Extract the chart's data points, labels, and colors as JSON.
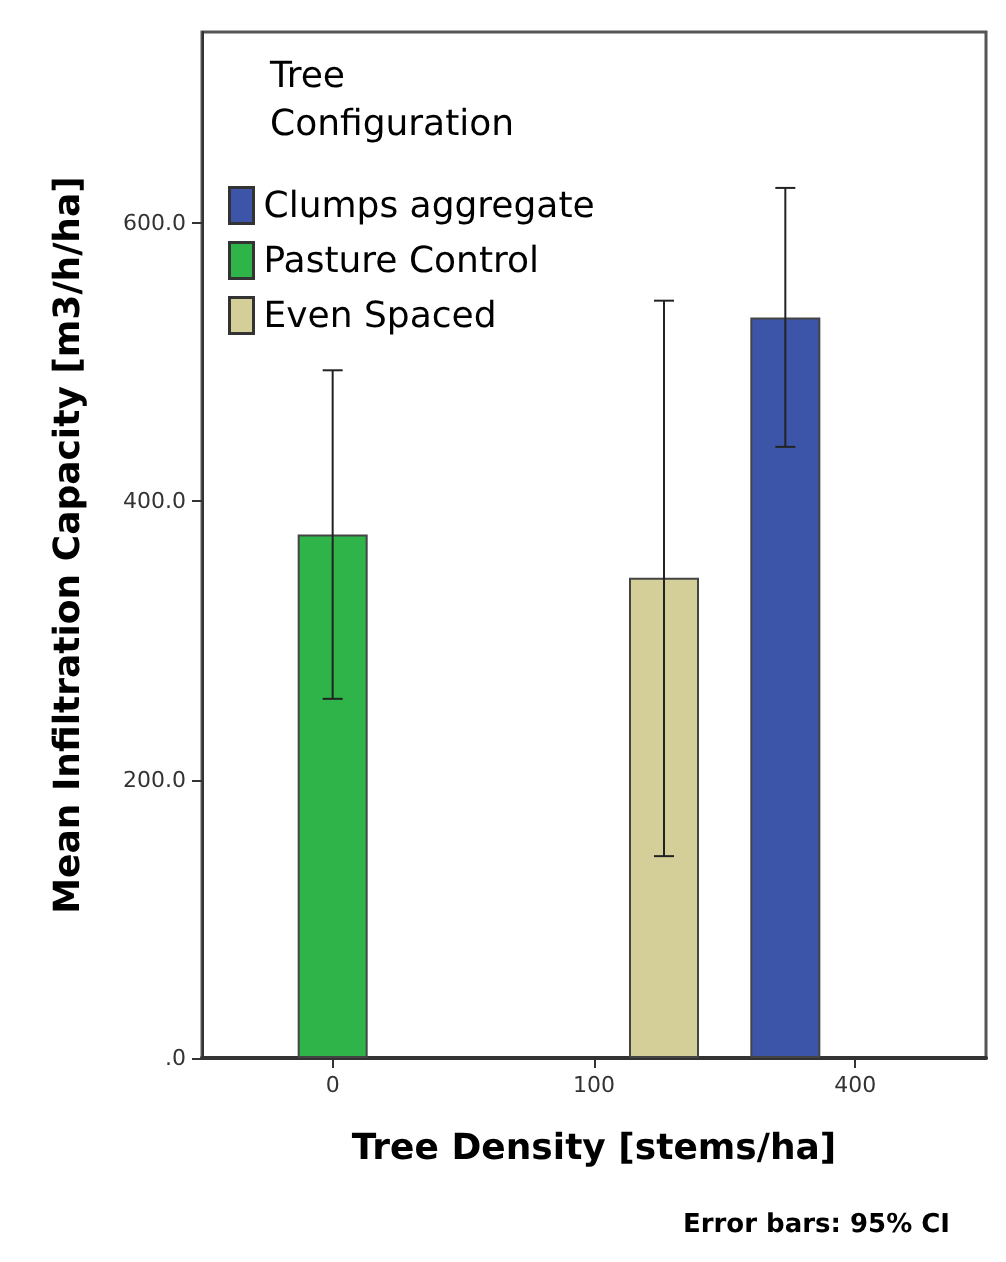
{
  "chart_data": {
    "type": "bar",
    "xlabel": "Tree Density [stems/ha]",
    "ylabel": "Mean Infiltration Capacity [m3/h/ha]",
    "legend_title": "Tree Configuration",
    "categories": [
      "0",
      "100",
      "400"
    ],
    "series": [
      {
        "name": "Clumps aggregate",
        "color": "#3c55a8",
        "values": [
          null,
          null,
          532
        ],
        "errors": [
          null,
          null,
          [
            439,
            625
          ]
        ]
      },
      {
        "name": "Pasture Control",
        "color": "#2eb449",
        "values": [
          376,
          null,
          null
        ],
        "errors": [
          [
            258,
            494
          ],
          null,
          null
        ]
      },
      {
        "name": "Even Spaced",
        "color": "#d4cf99",
        "values": [
          null,
          345,
          null
        ],
        "errors": [
          null,
          [
            145,
            544
          ],
          null
        ]
      }
    ],
    "ylim": [
      0,
      737
    ],
    "yticks": [
      {
        "value": 0,
        "label": ".0"
      },
      {
        "value": 200,
        "label": "200.0"
      },
      {
        "value": 400,
        "label": "400.0"
      },
      {
        "value": 600,
        "label": "600.0"
      }
    ],
    "grid": false,
    "legend": "top left",
    "annotations": [
      "Error bars: 95% CI"
    ]
  }
}
